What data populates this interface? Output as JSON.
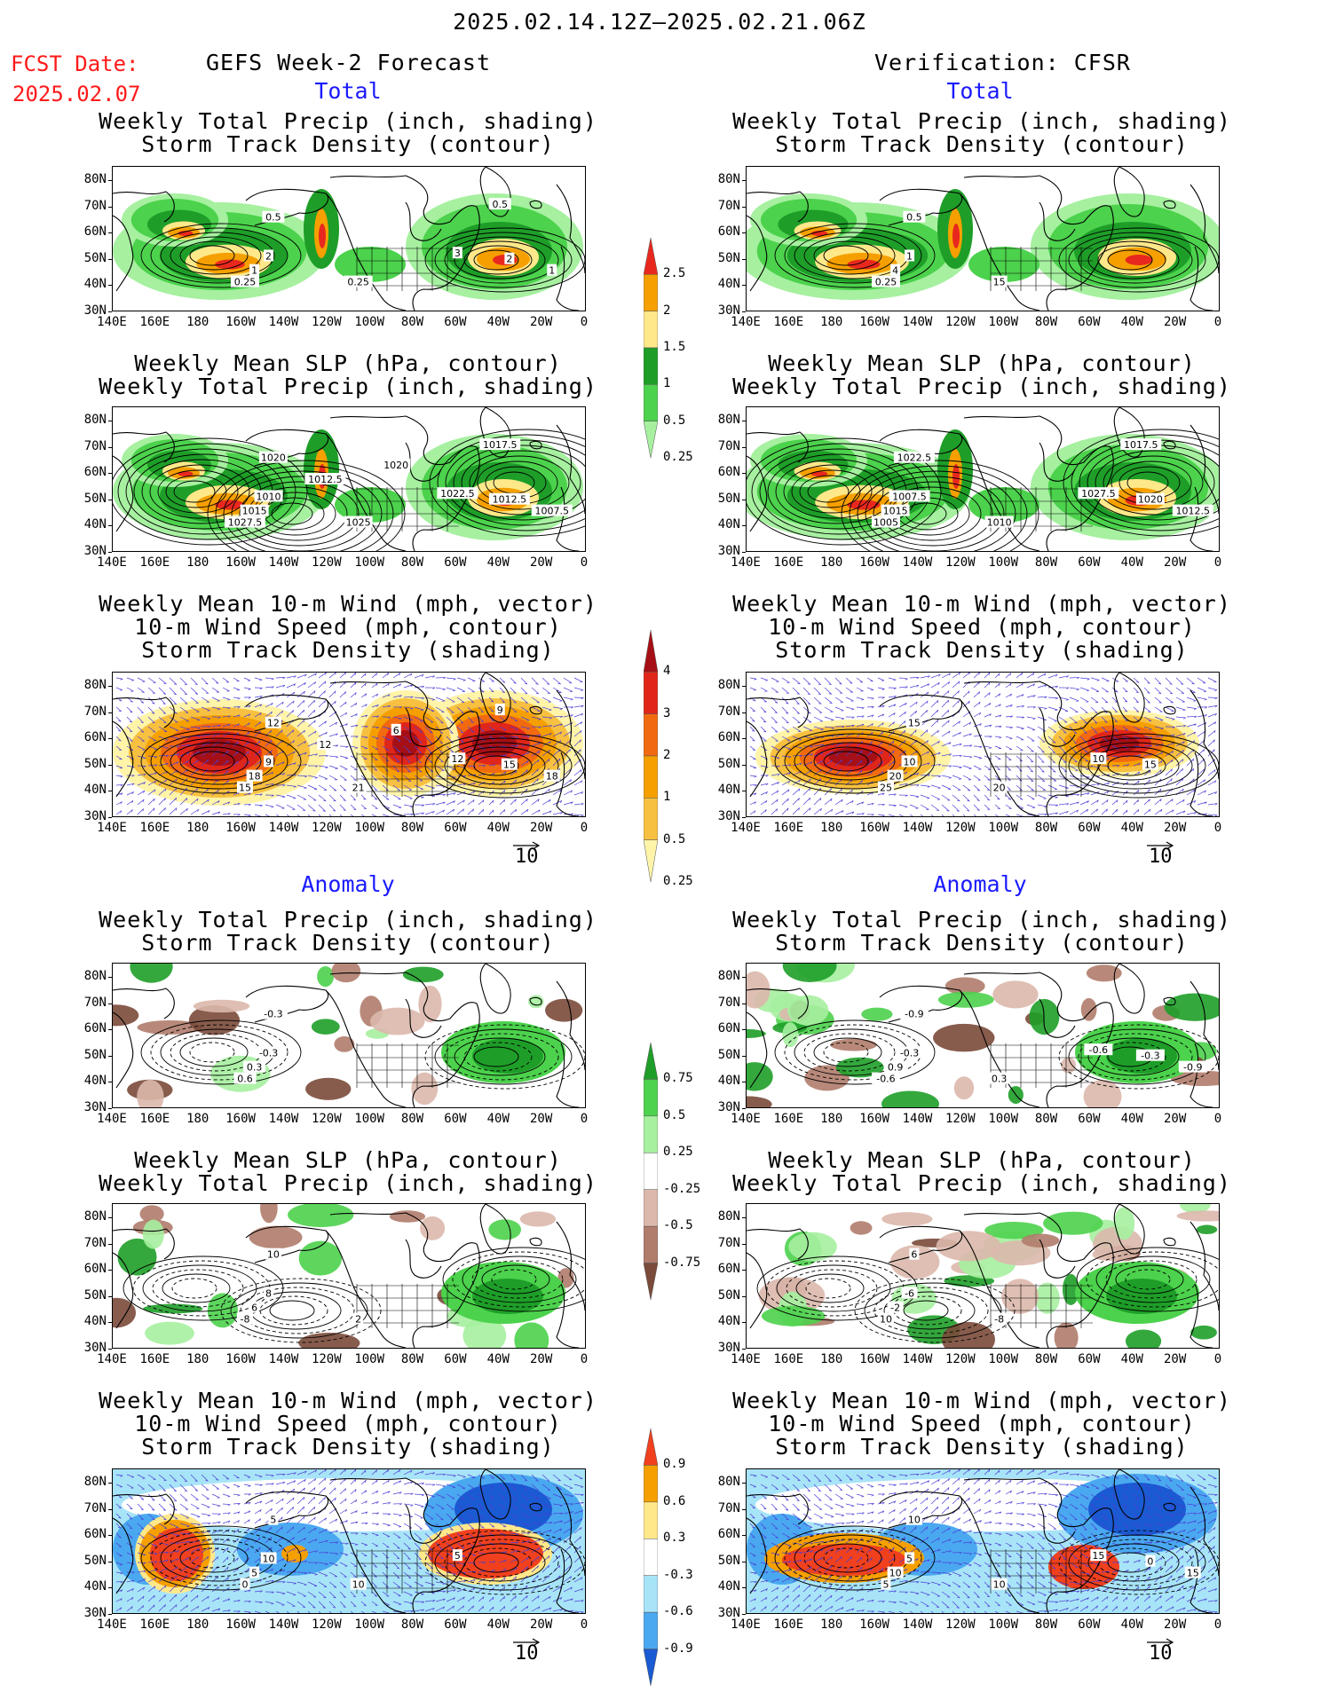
{
  "header": {
    "date_range": "2025.02.14.12Z–2025.02.21.06Z",
    "fcst_label": "FCST Date:",
    "fcst_date": "2025.02.07",
    "left_title": "GEFS Week-2 Forecast",
    "right_title": "Verification: CFSR",
    "total_label": "Total",
    "anomaly_label": "Anomaly"
  },
  "axes": {
    "lat_labels": [
      "80N",
      "70N",
      "60N",
      "50N",
      "40N",
      "30N"
    ],
    "lon_labels": [
      "140E",
      "160E",
      "180",
      "160W",
      "140W",
      "120W",
      "100W",
      "80W",
      "60W",
      "40W",
      "20W",
      "0"
    ]
  },
  "titles": {
    "precip_storm": [
      "Weekly Total Precip (inch, shading)",
      "Storm Track Density (contour)"
    ],
    "slp_precip": [
      "Weekly Mean SLP (hPa, contour)",
      "Weekly Total Precip (inch, shading)"
    ],
    "wind_storm": [
      "Weekly Mean 10-m Wind (mph, vector)",
      "10-m Wind Speed (mph, contour)",
      "Storm Track Density (shading)"
    ]
  },
  "vector_ref": "10",
  "colorbars": {
    "total_precip": {
      "labels": [
        "2.5",
        "2",
        "1.5",
        "1",
        "0.5",
        "0.25"
      ],
      "colors": [
        "#e8281e",
        "#f5a000",
        "#ffe88a",
        "#1e9e28",
        "#4cd24c",
        "#a6f0a0"
      ]
    },
    "total_storm": {
      "labels": [
        "4",
        "3",
        "2",
        "1",
        "0.5",
        "0.25"
      ],
      "colors": [
        "#a50f15",
        "#e0261a",
        "#f26a10",
        "#f5a000",
        "#f7c040",
        "#fff4a8"
      ]
    },
    "anom_precip": {
      "labels": [
        "0.75",
        "0.5",
        "0.25",
        "-0.25",
        "-0.5",
        "-0.75"
      ],
      "colors": [
        "#1e9e28",
        "#4cd24c",
        "#a6f0a0",
        "#ffffff",
        "#dcb8ac",
        "#b07c6c",
        "#7a4a3a"
      ]
    },
    "anom_storm": {
      "labels": [
        "0.9",
        "0.6",
        "0.3",
        "-0.3",
        "-0.6",
        "-0.9"
      ],
      "colors": [
        "#f0401e",
        "#f5a000",
        "#ffe88a",
        "#ffffff",
        "#a8e4f8",
        "#4aa8f0",
        "#1a5ad2"
      ]
    }
  },
  "panels": {
    "l1": {
      "contour_labels": [
        "0.5",
        "2",
        "1",
        "0.25",
        "0.25",
        "3",
        "2",
        "1",
        "0.5"
      ]
    },
    "r1": {
      "contour_labels": [
        "0.5",
        "1",
        "4",
        "0.25",
        "15"
      ]
    },
    "l2": {
      "contour_labels": [
        "1020",
        "1010",
        "1015",
        "1027.5",
        "1025",
        "1022.5",
        "1012.5",
        "1007.5",
        "1017.5",
        "1020",
        "1012.5"
      ]
    },
    "r2": {
      "contour_labels": [
        "1022.5",
        "1007.5",
        "1015",
        "1005",
        "1010",
        "1027.5",
        "1020",
        "1012.5",
        "1017.5"
      ]
    },
    "l3": {
      "contour_labels": [
        "12",
        "9",
        "18",
        "15",
        "21",
        "12",
        "15",
        "18",
        "9",
        "6",
        "12"
      ]
    },
    "r3": {
      "contour_labels": [
        "15",
        "10",
        "20",
        "25",
        "20",
        "10",
        "15"
      ]
    },
    "l4": {
      "contour_labels": [
        "-0.3",
        "-0.3",
        "0.3",
        "0.6"
      ]
    },
    "r4": {
      "contour_labels": [
        "-0.9",
        "-0.3",
        "0.9",
        "-0.6",
        "0.3",
        "-0.6",
        "-0.3",
        "-0.9"
      ]
    },
    "l5": {
      "contour_labels": [
        "10",
        "8",
        "6",
        "-8",
        "2"
      ]
    },
    "r5": {
      "contour_labels": [
        "6",
        "-6",
        "-2",
        "10",
        "-8"
      ]
    },
    "l6": {
      "contour_labels": [
        "5",
        "10",
        "5",
        "0",
        "10",
        "5"
      ]
    },
    "r6": {
      "contour_labels": [
        "10",
        "5",
        "10",
        "5",
        "10",
        "15",
        "0",
        "15"
      ]
    }
  }
}
